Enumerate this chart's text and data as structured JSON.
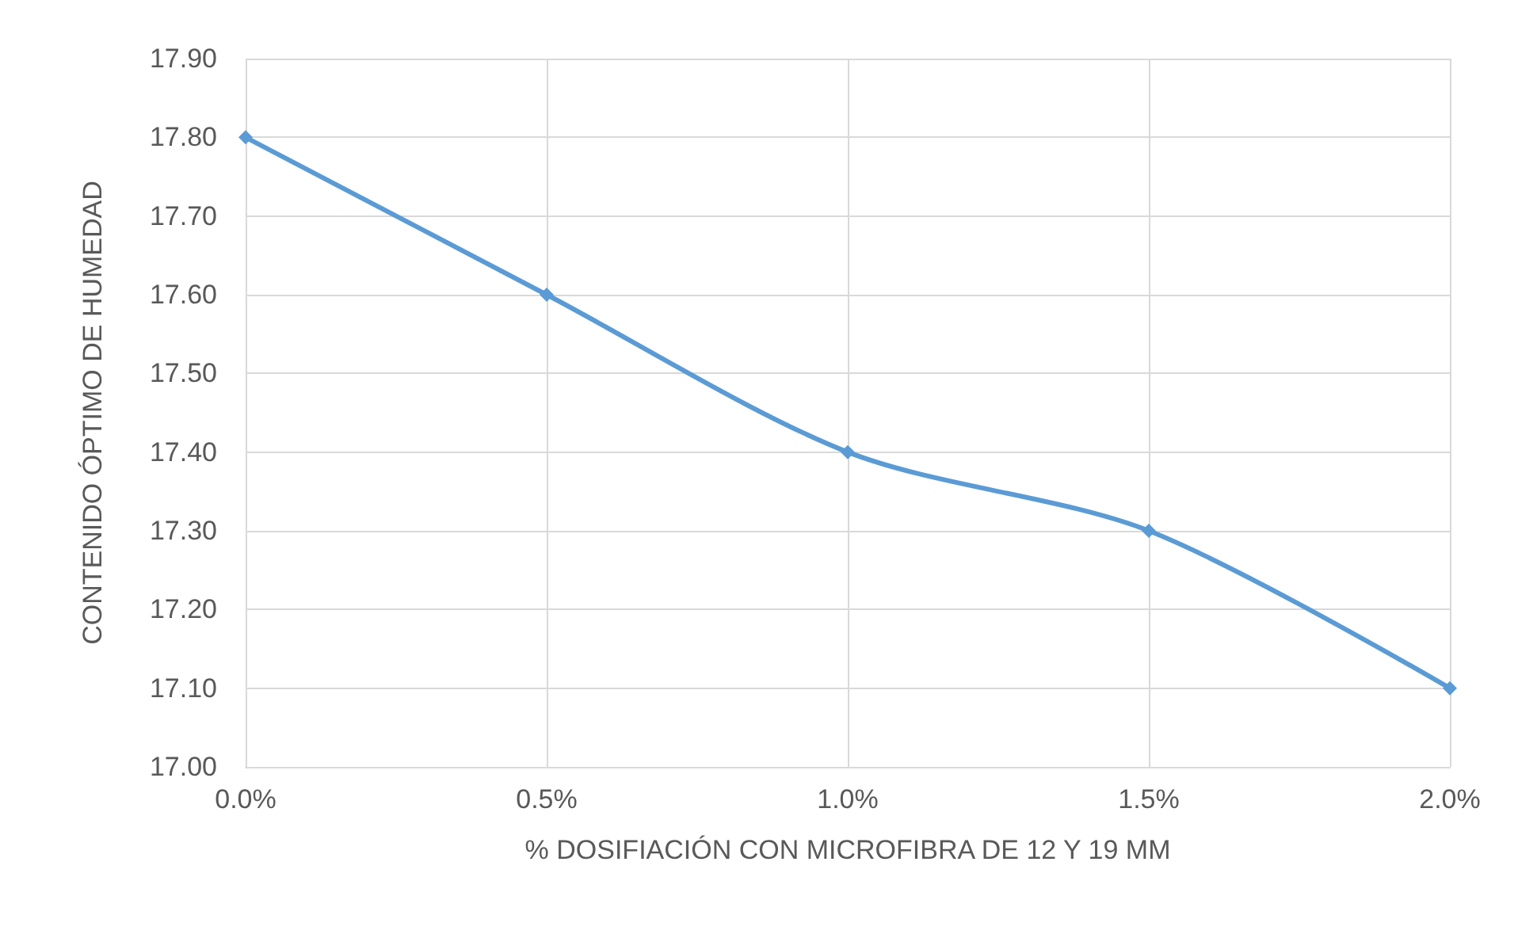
{
  "chart_data": {
    "type": "line",
    "xlabel": "% DOSIFIACIÓN CON MICROFIBRA DE 12 Y 19 MM",
    "ylabel": "CONTENIDO ÓPTIMO DE HUMEDAD",
    "categories": [
      "0.0%",
      "0.5%",
      "1.0%",
      "1.5%",
      "2.0%"
    ],
    "series": [
      {
        "color": "#5b9bd5",
        "values": [
          17.8,
          17.6,
          17.4,
          17.3,
          17.1
        ]
      }
    ],
    "ylim": [
      17.0,
      17.9
    ],
    "yticks": [
      {
        "value": 17.0,
        "label": "17.00"
      },
      {
        "value": 17.1,
        "label": "17.10"
      },
      {
        "value": 17.2,
        "label": "17.20"
      },
      {
        "value": 17.3,
        "label": "17.30"
      },
      {
        "value": 17.4,
        "label": "17.40"
      },
      {
        "value": 17.5,
        "label": "17.50"
      },
      {
        "value": 17.6,
        "label": "17.60"
      },
      {
        "value": 17.7,
        "label": "17.70"
      },
      {
        "value": 17.8,
        "label": "17.80"
      },
      {
        "value": 17.9,
        "label": "17.90"
      }
    ],
    "grid": true,
    "marker": "diamond",
    "line_style": "solid"
  }
}
